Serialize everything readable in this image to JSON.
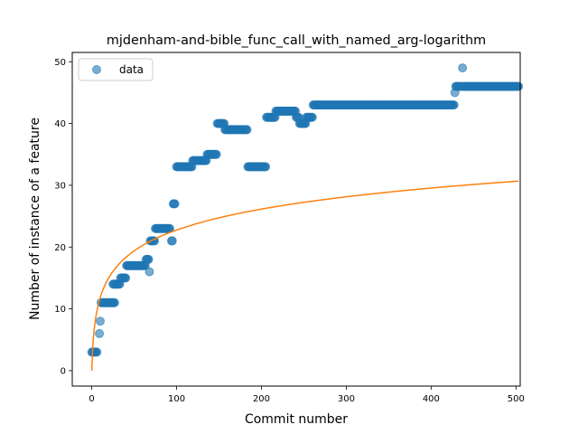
{
  "chart_data": {
    "type": "scatter",
    "title": "mjdenham-and-bible_func_call_with_named_arg-logarithm",
    "xlabel": "Commit number",
    "ylabel": "Number of instance of a feature",
    "xlim": [
      -23,
      505
    ],
    "ylim": [
      -2.5,
      51.5
    ],
    "xticks": [
      0,
      100,
      200,
      300,
      400,
      500
    ],
    "yticks": [
      0,
      10,
      20,
      30,
      40,
      50
    ],
    "grid": false,
    "legend": {
      "placement": "top-left",
      "entries": [
        "data"
      ]
    },
    "colors": {
      "data": "#1f77b4",
      "fit": "#ff7f0e"
    },
    "series": [
      {
        "name": "data",
        "kind": "scatter",
        "segments": [
          [
            0,
            6,
            3
          ],
          [
            9,
            9,
            6
          ],
          [
            10,
            10,
            8
          ],
          [
            11,
            27,
            11
          ],
          [
            25,
            33,
            14
          ],
          [
            34,
            40,
            15
          ],
          [
            41,
            63,
            17
          ],
          [
            64,
            67,
            18
          ],
          [
            68,
            68,
            16
          ],
          [
            69,
            74,
            21
          ],
          [
            75,
            92,
            23
          ],
          [
            94,
            95,
            21
          ],
          [
            96,
            98,
            27
          ],
          [
            100,
            118,
            33
          ],
          [
            119,
            135,
            34
          ],
          [
            136,
            147,
            35
          ],
          [
            148,
            156,
            40
          ],
          [
            157,
            183,
            39
          ],
          [
            184,
            205,
            33
          ],
          [
            206,
            216,
            41
          ],
          [
            217,
            240,
            42
          ],
          [
            241,
            244,
            41
          ],
          [
            245,
            252,
            40
          ],
          [
            253,
            260,
            41
          ],
          [
            261,
            427,
            43
          ],
          [
            428,
            428,
            45
          ],
          [
            429,
            436,
            46
          ],
          [
            437,
            437,
            49
          ],
          [
            438,
            503,
            46
          ]
        ]
      },
      {
        "name": "",
        "kind": "line",
        "fit": {
          "a": 4.93,
          "b": 1.0
        },
        "x_range": [
          0,
          503
        ]
      }
    ]
  }
}
